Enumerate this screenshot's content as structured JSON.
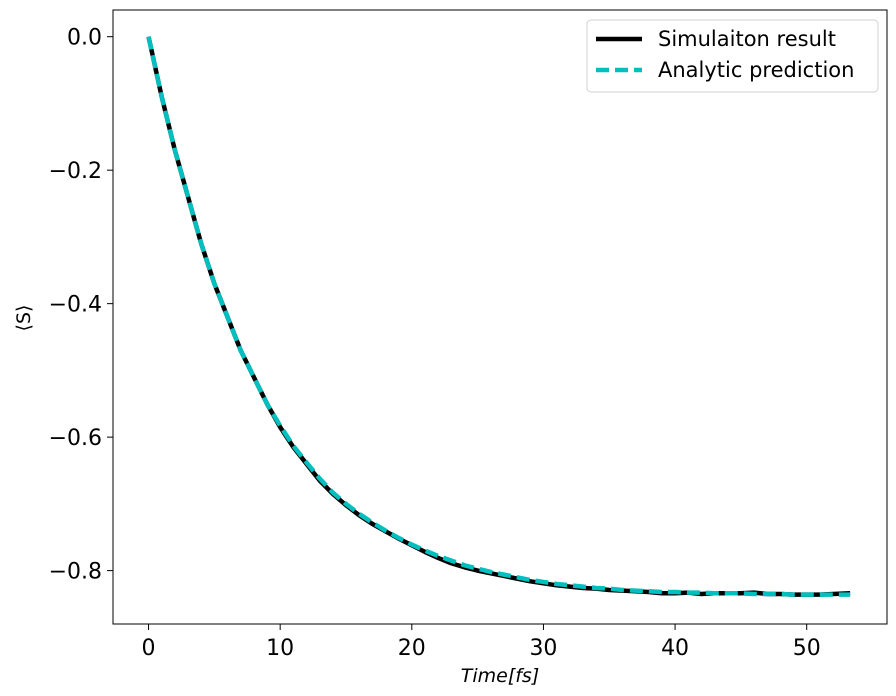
{
  "chart_data": {
    "type": "line",
    "xlabel": "Time[fs]",
    "ylabel": "⟨S⟩",
    "xlim": [
      -2.7,
      56.1
    ],
    "ylim": [
      -0.88,
      0.04
    ],
    "xticks": [
      0,
      10,
      20,
      30,
      40,
      50
    ],
    "yticks": [
      0.0,
      -0.2,
      -0.4,
      -0.6,
      -0.8
    ],
    "xtick_labels": [
      "0",
      "10",
      "20",
      "30",
      "40",
      "50"
    ],
    "ytick_labels": [
      "0.0",
      "−0.2",
      "−0.4",
      "−0.6",
      "−0.8"
    ],
    "grid": false,
    "legend_position": "top-right",
    "series": [
      {
        "name": "Simulaiton result",
        "color": "#000000",
        "style": "solid",
        "x": [
          0,
          1,
          2,
          3,
          4,
          5,
          6,
          7,
          8,
          9,
          10,
          11,
          12,
          13,
          14,
          15,
          16,
          17,
          18,
          19,
          20,
          21,
          22,
          23,
          24,
          25,
          26,
          27,
          28,
          29,
          30,
          31,
          32,
          33,
          34,
          35,
          36,
          37,
          38,
          39,
          40,
          41,
          42,
          43,
          44,
          45,
          46,
          47,
          48,
          49,
          50,
          51,
          52,
          53.3
        ],
        "y": [
          0.0,
          -0.09,
          -0.17,
          -0.24,
          -0.31,
          -0.37,
          -0.42,
          -0.47,
          -0.51,
          -0.55,
          -0.585,
          -0.615,
          -0.64,
          -0.665,
          -0.685,
          -0.702,
          -0.717,
          -0.73,
          -0.741,
          -0.752,
          -0.762,
          -0.772,
          -0.781,
          -0.789,
          -0.795,
          -0.8,
          -0.804,
          -0.808,
          -0.812,
          -0.816,
          -0.819,
          -0.822,
          -0.824,
          -0.826,
          -0.827,
          -0.829,
          -0.83,
          -0.831,
          -0.832,
          -0.834,
          -0.834,
          -0.833,
          -0.835,
          -0.834,
          -0.834,
          -0.834,
          -0.833,
          -0.835,
          -0.835,
          -0.836,
          -0.836,
          -0.836,
          -0.835,
          -0.834
        ]
      },
      {
        "name": "Analytic prediction",
        "color": "#00bfbf",
        "style": "dashed",
        "x": [
          0,
          1,
          2,
          3,
          4,
          5,
          6,
          7,
          8,
          9,
          10,
          11,
          12,
          13,
          14,
          15,
          16,
          17,
          18,
          19,
          20,
          21,
          22,
          23,
          24,
          25,
          26,
          27,
          28,
          29,
          30,
          31,
          32,
          33,
          34,
          35,
          36,
          37,
          38,
          39,
          40,
          41,
          42,
          43,
          44,
          45,
          46,
          47,
          48,
          49,
          50,
          51,
          52,
          53.3
        ],
        "y": [
          0.0,
          -0.09,
          -0.17,
          -0.24,
          -0.31,
          -0.37,
          -0.42,
          -0.47,
          -0.51,
          -0.55,
          -0.583,
          -0.613,
          -0.638,
          -0.662,
          -0.683,
          -0.7,
          -0.715,
          -0.728,
          -0.74,
          -0.751,
          -0.761,
          -0.77,
          -0.778,
          -0.785,
          -0.792,
          -0.797,
          -0.802,
          -0.806,
          -0.81,
          -0.814,
          -0.817,
          -0.82,
          -0.822,
          -0.824,
          -0.826,
          -0.827,
          -0.829,
          -0.83,
          -0.831,
          -0.832,
          -0.832,
          -0.833,
          -0.833,
          -0.834,
          -0.834,
          -0.834,
          -0.835,
          -0.835,
          -0.835,
          -0.836,
          -0.836,
          -0.836,
          -0.836,
          -0.836
        ]
      }
    ]
  }
}
